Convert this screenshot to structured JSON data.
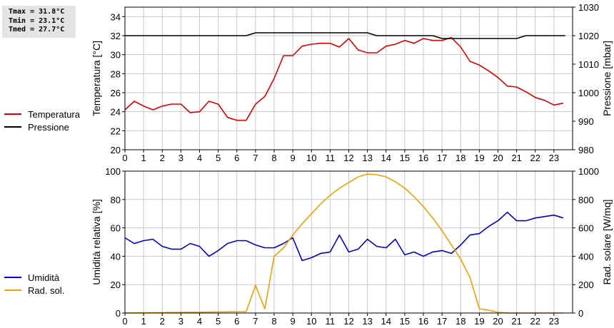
{
  "stats": {
    "tmax": "Tmax = 31.8°C",
    "tmin": "Tmin = 23.1°C",
    "tmed": "Tmed = 27.7°C"
  },
  "chart_data": [
    {
      "type": "line",
      "title": "",
      "xlabel": "",
      "ylabel": "Temperatura [°C]",
      "y2label": "Pressione [mbar]",
      "xlim": [
        0,
        24
      ],
      "xticks": [
        0,
        1,
        2,
        3,
        4,
        5,
        6,
        7,
        8,
        9,
        10,
        11,
        12,
        13,
        14,
        15,
        16,
        17,
        18,
        19,
        20,
        21,
        22,
        23
      ],
      "ylim": [
        20,
        35
      ],
      "yticks": [
        20,
        22,
        24,
        26,
        28,
        30,
        32,
        34
      ],
      "y2lim": [
        980,
        1030
      ],
      "y2ticks": [
        980,
        990,
        1000,
        1010,
        1020,
        1030
      ],
      "grid": true,
      "legend": "left",
      "series": [
        {
          "name": "Temperatura",
          "color": "#dd0000",
          "axis": "left",
          "x": [
            0,
            0.5,
            1,
            1.5,
            2,
            2.5,
            3,
            3.5,
            4,
            4.5,
            5,
            5.5,
            6,
            6.5,
            7,
            7.5,
            8,
            8.5,
            9,
            9.5,
            10,
            10.5,
            11,
            11.5,
            12,
            12.5,
            13,
            13.5,
            14,
            14.5,
            15,
            15.5,
            16,
            16.5,
            17,
            17.5,
            18,
            18.5,
            19,
            19.5,
            20,
            20.5,
            21,
            21.5,
            22,
            22.5,
            23,
            23.5
          ],
          "values": [
            24.2,
            25.1,
            24.6,
            24.2,
            24.6,
            24.8,
            24.8,
            23.9,
            24.0,
            25.1,
            24.8,
            23.4,
            23.1,
            23.1,
            24.8,
            25.6,
            27.5,
            29.9,
            29.9,
            30.9,
            31.1,
            31.2,
            31.2,
            30.8,
            31.7,
            30.5,
            30.2,
            30.2,
            30.9,
            31.1,
            31.5,
            31.2,
            31.7,
            31.5,
            31.5,
            31.8,
            30.8,
            29.3,
            28.9,
            28.3,
            27.6,
            26.7,
            26.6,
            26.1,
            25.5,
            25.2,
            24.7,
            24.9
          ]
        },
        {
          "name": "Pressione",
          "color": "#000000",
          "axis": "right",
          "x": [
            0,
            6.5,
            7,
            13,
            13.5,
            16.5,
            17,
            21,
            21.5,
            23.6
          ],
          "values": [
            1020,
            1020,
            1021,
            1021,
            1020,
            1020,
            1019,
            1019,
            1020,
            1020
          ]
        }
      ]
    },
    {
      "type": "line",
      "title": "",
      "xlabel": "",
      "ylabel": "Umidità relativa [%]",
      "y2label": "Rad. solare [W/mq]",
      "xlim": [
        0,
        24
      ],
      "xticks": [
        0,
        1,
        2,
        3,
        4,
        5,
        6,
        7,
        8,
        9,
        10,
        11,
        12,
        13,
        14,
        15,
        16,
        17,
        18,
        19,
        20,
        21,
        22,
        23
      ],
      "ylim": [
        0,
        100
      ],
      "yticks": [
        0,
        20,
        40,
        60,
        80,
        100
      ],
      "y2lim": [
        0,
        1000
      ],
      "y2ticks": [
        0,
        200,
        400,
        600,
        800,
        1000
      ],
      "grid": true,
      "legend": "left",
      "series": [
        {
          "name": "Umidità",
          "color": "#0000cc",
          "axis": "left",
          "x": [
            0,
            0.5,
            1,
            1.5,
            2,
            2.5,
            3,
            3.5,
            4,
            4.5,
            5,
            5.5,
            6,
            6.5,
            7,
            7.5,
            8,
            8.5,
            9,
            9.5,
            10,
            10.5,
            11,
            11.5,
            12,
            12.5,
            13,
            13.5,
            14,
            14.5,
            15,
            15.5,
            16,
            16.5,
            17,
            17.5,
            18,
            18.5,
            19,
            19.5,
            20,
            20.5,
            21,
            21.5,
            22,
            22.5,
            23,
            23.5
          ],
          "values": [
            53,
            49,
            51,
            52,
            47,
            45,
            45,
            49,
            47,
            40,
            44,
            49,
            51,
            51,
            48,
            46,
            46,
            49,
            53,
            37,
            39,
            42,
            43,
            55,
            43,
            45,
            52,
            47,
            46,
            52,
            41,
            43,
            40,
            43,
            44,
            42,
            48,
            55,
            56,
            61,
            65,
            71,
            65,
            65,
            67,
            68,
            69,
            67
          ]
        },
        {
          "name": "Rad. sol.",
          "color": "#f0a000",
          "axis": "right",
          "x": [
            0,
            6.5,
            7,
            7.5,
            8,
            8.5,
            9,
            9.5,
            10,
            10.5,
            11,
            11.5,
            12,
            12.5,
            13,
            13.5,
            14,
            14.5,
            15,
            15.5,
            16,
            16.5,
            17,
            17.5,
            18,
            18.5,
            19,
            19.5,
            20,
            20.5,
            21,
            21.5,
            22,
            22.5,
            23,
            23.5
          ],
          "values": [
            0,
            10,
            195,
            30,
            400,
            460,
            550,
            630,
            700,
            770,
            830,
            880,
            920,
            960,
            980,
            975,
            960,
            925,
            880,
            820,
            750,
            670,
            580,
            480,
            380,
            250,
            30,
            20,
            5,
            0,
            0,
            0,
            0,
            0,
            0,
            0
          ]
        }
      ]
    }
  ]
}
